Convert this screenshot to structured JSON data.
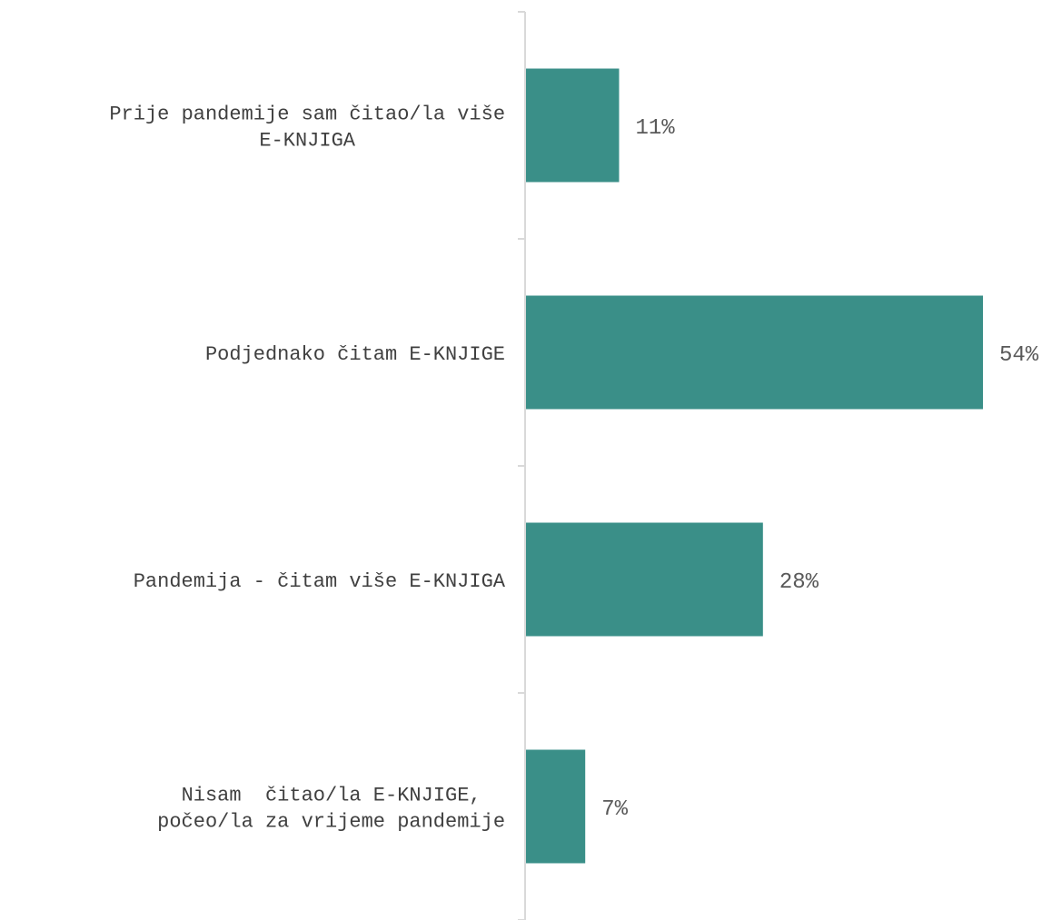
{
  "chart_data": {
    "type": "bar",
    "orientation": "horizontal",
    "categories": [
      [
        "Prije pandemije sam čitao/la više",
        "E-KNJIGA"
      ],
      [
        "Podjednako čitam E-KNJIGE"
      ],
      [
        "Pandemija - čitam više E-KNJIGA"
      ],
      [
        "Nisam  čitao/la E-KNJIGE,",
        "počeo/la za vrijeme pandemije"
      ]
    ],
    "values": [
      11,
      54,
      28,
      7
    ],
    "value_labels": [
      "11%",
      "54%",
      "28%",
      "7%"
    ],
    "unit": "%",
    "xlim": [
      0,
      54
    ],
    "title": "",
    "xlabel": "",
    "ylabel": "",
    "grid": false,
    "legend": "none",
    "bar_color": "#3a8f88",
    "axis_color": "#d9d9d9"
  }
}
